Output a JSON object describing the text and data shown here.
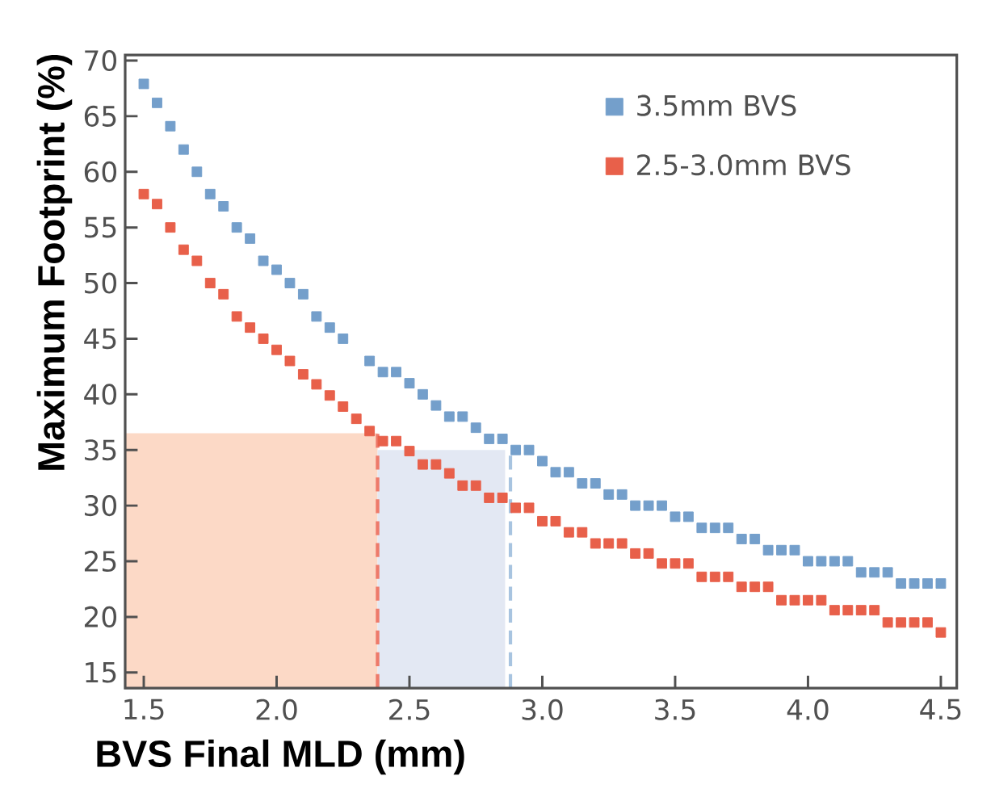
{
  "chart_data": {
    "type": "scatter",
    "xlabel": "BVS Final MLD (mm)",
    "ylabel": "Maximum Footprint (%)",
    "x": [
      1.5,
      1.55,
      1.6,
      1.65,
      1.7,
      1.75,
      1.8,
      1.85,
      1.9,
      1.95,
      2.0,
      2.05,
      2.1,
      2.15,
      2.2,
      2.25,
      2.3,
      2.35,
      2.4,
      2.45,
      2.5,
      2.55,
      2.6,
      2.65,
      2.7,
      2.75,
      2.8,
      2.85,
      2.9,
      2.95,
      3.0,
      3.05,
      3.1,
      3.15,
      3.2,
      3.25,
      3.3,
      3.35,
      3.4,
      3.45,
      3.5,
      3.55,
      3.6,
      3.65,
      3.7,
      3.75,
      3.8,
      3.85,
      3.9,
      3.95,
      4.0,
      4.05,
      4.1,
      4.15,
      4.2,
      4.25,
      4.3,
      4.35,
      4.4,
      4.45,
      4.5
    ],
    "series": [
      {
        "type": "area",
        "x": [
          1.43,
          2.38
        ],
        "values": [
          36.5,
          36.5
        ],
        "color": "#fcd9c6",
        "marker": "none"
      },
      {
        "type": "area",
        "x": [
          2.38,
          2.86
        ],
        "values": [
          35,
          35
        ],
        "color": "#e3e8f3",
        "marker": "none"
      },
      {
        "type": "line",
        "x": [
          2.38,
          2.38
        ],
        "values": [
          13.6,
          36.5
        ],
        "color": "#ee7a6a",
        "line_style": "dashed",
        "marker": "none"
      },
      {
        "type": "line",
        "x": [
          2.88,
          2.88
        ],
        "values": [
          13.6,
          35
        ],
        "color": "#a8c4e0",
        "line_style": "dashed",
        "marker": "none"
      },
      {
        "name": "3.5mm BVS",
        "color": "#749fcb",
        "values": [
          67.9,
          66.2,
          64.1,
          62,
          60,
          58,
          56.9,
          55,
          54,
          52,
          51.2,
          50,
          49,
          47,
          46,
          45,
          null,
          43,
          42,
          42,
          41,
          40,
          39,
          38,
          38,
          37,
          36,
          36,
          35,
          35,
          34,
          33,
          33,
          32,
          32,
          31,
          31,
          30,
          30,
          30,
          29,
          29,
          28,
          28,
          28,
          27,
          27,
          26,
          26,
          26,
          25,
          25,
          25,
          25,
          24,
          24,
          24,
          23,
          23,
          23,
          23
        ]
      },
      {
        "name": "2.5-3.0mm BVS",
        "color": "#e8604a",
        "values": [
          58,
          57.1,
          55,
          53,
          52,
          50,
          49,
          47,
          46,
          45,
          44,
          43,
          41.8,
          40.9,
          39.9,
          38.9,
          37.8,
          36.7,
          35.8,
          35.8,
          34.9,
          33.7,
          33.7,
          32.9,
          31.8,
          31.8,
          30.7,
          30.7,
          29.8,
          29.8,
          28.6,
          28.6,
          27.6,
          27.6,
          26.6,
          26.6,
          26.6,
          25.7,
          25.7,
          24.8,
          24.8,
          24.8,
          23.6,
          23.6,
          23.6,
          22.7,
          22.7,
          22.7,
          21.5,
          21.5,
          21.5,
          21.5,
          20.6,
          20.6,
          20.6,
          20.6,
          19.5,
          19.5,
          19.5,
          19.5,
          18.6
        ]
      }
    ],
    "xlim": [
      1.43,
      4.56
    ],
    "ylim": [
      13.6,
      70.5
    ],
    "xticks": [
      1.5,
      {
        "value": 2,
        "label": "2.0"
      },
      2.5,
      {
        "value": 3,
        "label": "3.0"
      },
      3.5,
      {
        "value": 4,
        "label": "4.0"
      },
      4.5
    ],
    "yticks": [
      15,
      20,
      25,
      30,
      35,
      40,
      45,
      50,
      55,
      60,
      65,
      70
    ],
    "marker": "square",
    "legend": "top right"
  }
}
